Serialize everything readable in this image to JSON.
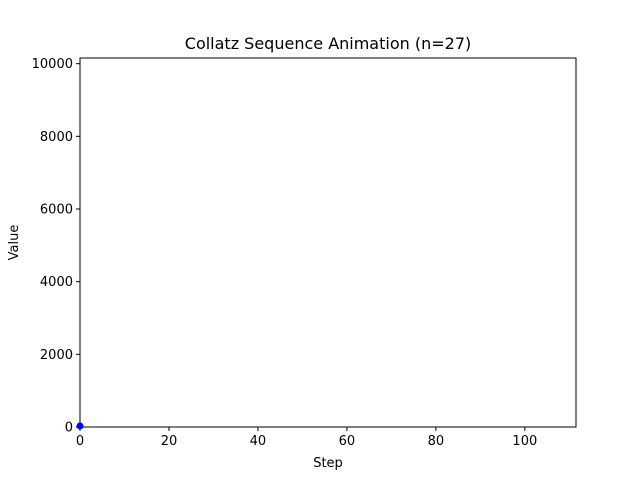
{
  "chart_data": {
    "type": "line",
    "title": "Collatz Sequence Animation (n=27)",
    "xlabel": "Step",
    "ylabel": "Value",
    "xlim": [
      0,
      111.5
    ],
    "ylim": [
      0,
      10156
    ],
    "xticks": [
      "0",
      "20",
      "40",
      "60",
      "80",
      "100"
    ],
    "yticks": [
      "0",
      "2000",
      "4000",
      "6000",
      "8000",
      "10000"
    ],
    "grid": false,
    "legend": "none",
    "series": [
      {
        "color": "#0000ff",
        "marker": "circle",
        "x": [
          0
        ],
        "y": [
          27
        ]
      }
    ]
  }
}
